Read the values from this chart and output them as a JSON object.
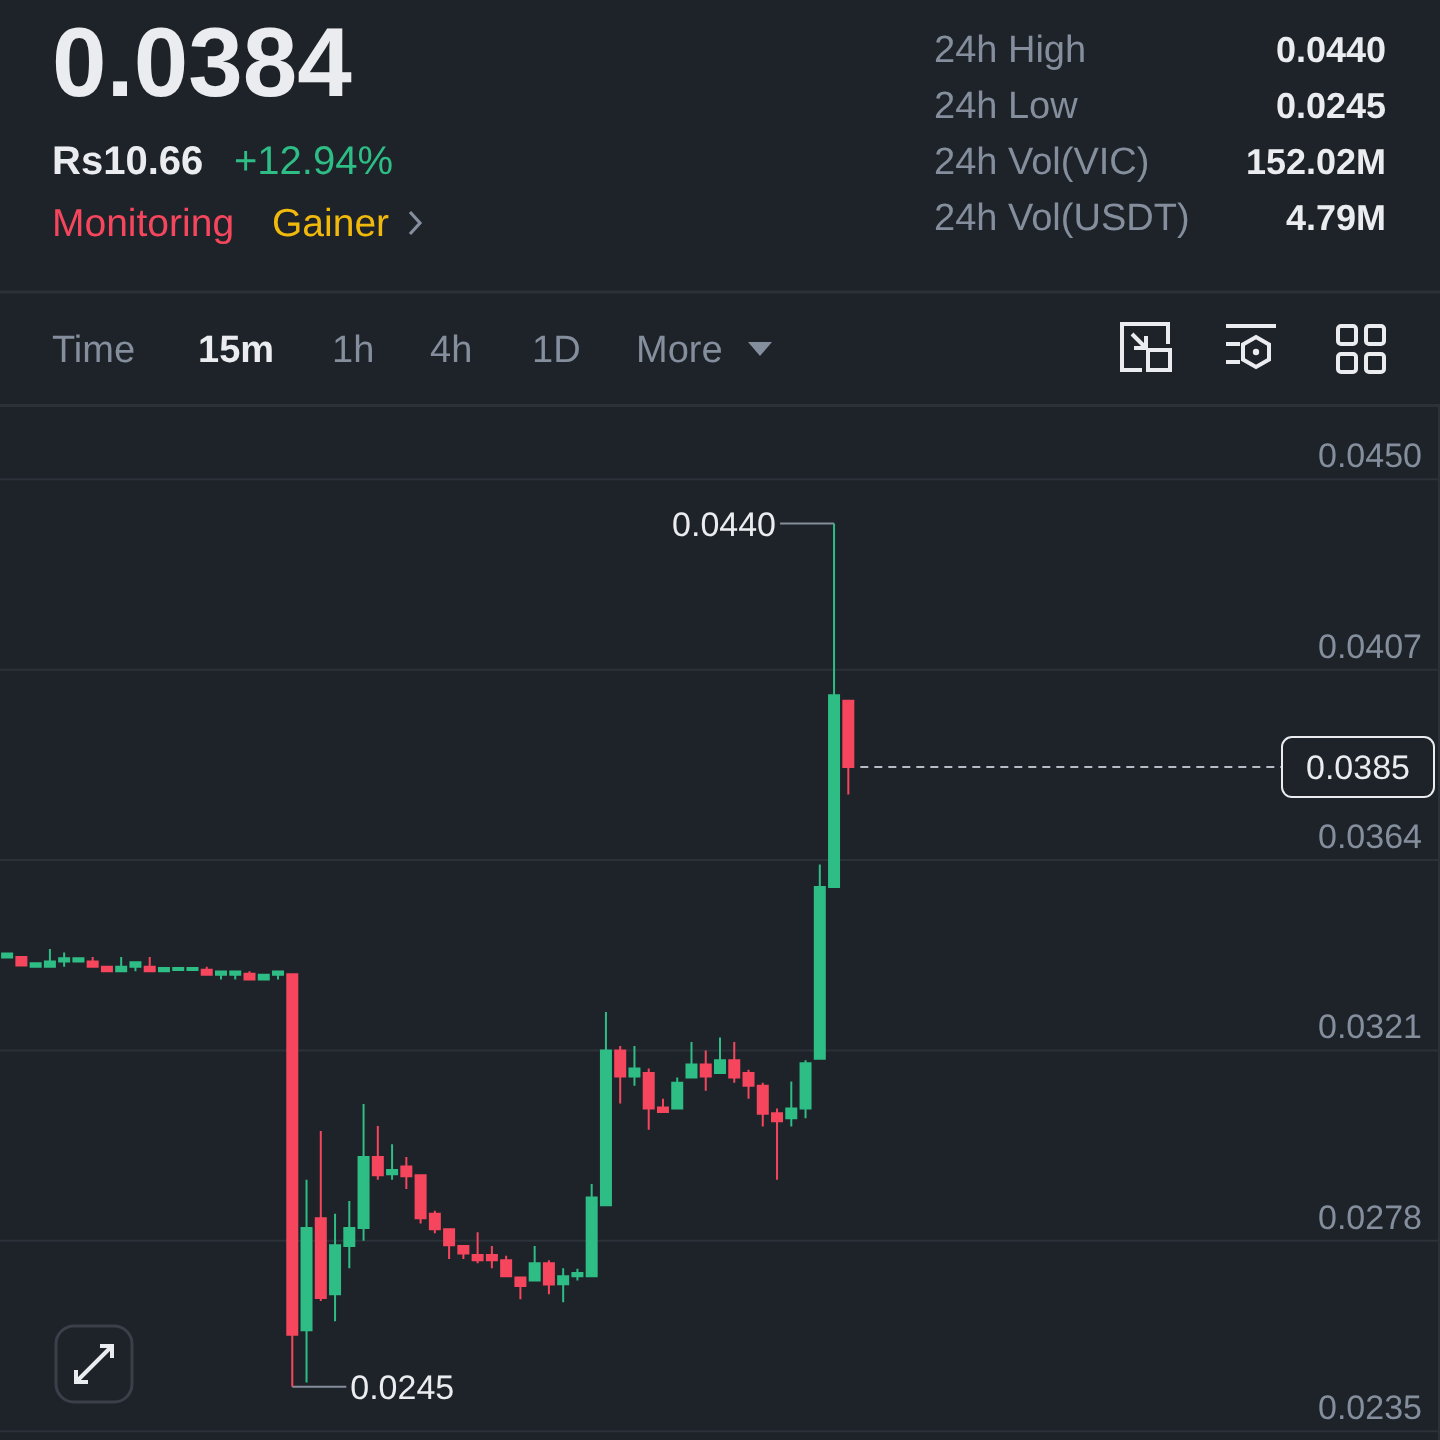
{
  "chart_data": {
    "type": "candlestick",
    "title": "0.0384",
    "annotations": [
      "Rs10.66",
      "+12.94%",
      "Monitoring",
      "Gainer",
      "24h High",
      "0.0440",
      "24h Low",
      "0.0245",
      "24h Vol(VIC)",
      "152.02M",
      "24h Vol(USDT)",
      "4.79M",
      "Time",
      "15m",
      "1h",
      "4h",
      "1D",
      "More",
      "0.0440",
      "0.0245"
    ],
    "categories": [
      null,
      null,
      null,
      null,
      null,
      null,
      null,
      null,
      null,
      null,
      null,
      null,
      null,
      null,
      null,
      null,
      null,
      null,
      null,
      null,
      null,
      null,
      null,
      null,
      null,
      null,
      null,
      null,
      null,
      null,
      null,
      null,
      null,
      null,
      null,
      null,
      null,
      null,
      null,
      null,
      null,
      null,
      null,
      null,
      null,
      null,
      null,
      null,
      null,
      null,
      null,
      null,
      null,
      null,
      null,
      null,
      null,
      null,
      null,
      null,
      null,
      null,
      null,
      null,
      null,
      null,
      null,
      null,
      null,
      null,
      null,
      null,
      null,
      null,
      null,
      null,
      null,
      null,
      null,
      null,
      null,
      null,
      null,
      null,
      null,
      null,
      null,
      null,
      null,
      null,
      null,
      null,
      null,
      null,
      null,
      null,
      null,
      null,
      null,
      null,
      null
    ],
    "ohlc": [
      [
        0.0342,
        0.03429,
        0.03418,
        0.03429
      ],
      [
        0.03421,
        0.03421,
        0.03402,
        0.03402
      ],
      [
        0.03399,
        0.03407,
        0.03399,
        0.03407
      ],
      [
        0.03399,
        0.03439,
        0.03399,
        0.03411
      ],
      [
        0.03411,
        0.03431,
        0.03399,
        0.03418
      ],
      [
        0.03411,
        0.03418,
        0.03411,
        0.03418
      ],
      [
        0.03411,
        0.03421,
        0.03399,
        0.03399
      ],
      [
        0.03399,
        0.03399,
        0.03389,
        0.03389
      ],
      [
        0.03389,
        0.03421,
        0.03389,
        0.03399
      ],
      [
        0.03399,
        0.03409,
        0.03389,
        0.03409
      ],
      [
        0.03399,
        0.03421,
        0.03389,
        0.03389
      ],
      [
        0.03389,
        0.03396,
        0.03389,
        0.03396
      ],
      [
        0.03392,
        0.03396,
        0.03392,
        0.03396
      ],
      [
        0.03392,
        0.03396,
        0.03392,
        0.03396
      ],
      [
        0.03392,
        0.03399,
        0.03381,
        0.03381
      ],
      [
        0.03381,
        0.03388,
        0.0337,
        0.03388
      ],
      [
        0.03381,
        0.03388,
        0.0337,
        0.03388
      ],
      [
        0.03383,
        0.03389,
        0.0337,
        0.0337
      ],
      [
        0.0337,
        0.03381,
        0.0337,
        0.03381
      ],
      [
        0.03381,
        0.03388,
        0.0337,
        0.03388
      ],
      [
        0.03382,
        0.03382,
        0.0245,
        0.02568
      ],
      [
        0.02578,
        0.02918,
        0.0246,
        0.02809
      ],
      [
        0.02831,
        0.03028,
        0.02644,
        0.02651
      ],
      [
        0.02659,
        0.02841,
        0.02598,
        0.0277
      ],
      [
        0.02768,
        0.0287,
        0.02718,
        0.02809
      ],
      [
        0.02809,
        0.03089,
        0.0278,
        0.02969
      ],
      [
        0.02969,
        0.03039,
        0.02918,
        0.02928
      ],
      [
        0.0293,
        0.02998,
        0.02918,
        0.0294
      ],
      [
        0.02948,
        0.02969,
        0.02897,
        0.02926
      ],
      [
        0.02928,
        0.02928,
        0.02819,
        0.02831
      ],
      [
        0.02841,
        0.02848,
        0.02797,
        0.02806
      ],
      [
        0.02806,
        0.02806,
        0.02739,
        0.0277
      ],
      [
        0.02768,
        0.02768,
        0.02739,
        0.02751
      ],
      [
        0.02748,
        0.02799,
        0.02729,
        0.02736
      ],
      [
        0.02748,
        0.02768,
        0.02718,
        0.02736
      ],
      [
        0.02736,
        0.02746,
        0.027,
        0.027
      ],
      [
        0.02697,
        0.02697,
        0.02648,
        0.02678
      ],
      [
        0.0269,
        0.02768,
        0.0269,
        0.02729
      ],
      [
        0.02729,
        0.02736,
        0.02659,
        0.02681
      ],
      [
        0.02682,
        0.02718,
        0.02641,
        0.027
      ],
      [
        0.027,
        0.02717,
        0.0269,
        0.02707
      ],
      [
        0.027,
        0.02908,
        0.027,
        0.02878
      ],
      [
        0.0286,
        0.03297,
        0.0286,
        0.0321
      ],
      [
        0.0321,
        0.0322,
        0.0309,
        0.03151
      ],
      [
        0.03151,
        0.0322,
        0.0313,
        0.03169
      ],
      [
        0.03159,
        0.03169,
        0.03031,
        0.03079
      ],
      [
        0.03081,
        0.03101,
        0.03071,
        0.03071
      ],
      [
        0.03079,
        0.03149,
        0.03079,
        0.03137
      ],
      [
        0.03149,
        0.03229,
        0.03149,
        0.03178
      ],
      [
        0.03178,
        0.0321,
        0.03119,
        0.03151
      ],
      [
        0.03159,
        0.03239,
        0.03159,
        0.03188
      ],
      [
        0.03188,
        0.03229,
        0.03137,
        0.03149
      ],
      [
        0.03159,
        0.03166,
        0.03101,
        0.0313
      ],
      [
        0.0313,
        0.03137,
        0.03038,
        0.03067
      ],
      [
        0.03068,
        0.03079,
        0.02918,
        0.0305
      ],
      [
        0.03057,
        0.0314,
        0.03038,
        0.03079
      ],
      [
        0.03079,
        0.03188,
        0.03057,
        0.03181
      ],
      [
        0.03191,
        0.0363,
        0.03191,
        0.03579
      ],
      [
        0.03579,
        0.044,
        0.03579,
        0.04012
      ],
      [
        0.04,
        0.04,
        0.03788,
        0.0385
      ],
      null,
      null,
      null,
      null,
      null,
      null,
      null,
      null,
      null,
      null,
      null,
      null,
      null,
      null,
      null,
      null,
      null,
      null,
      null,
      null,
      null,
      null,
      null,
      null,
      null,
      null,
      null,
      null,
      null,
      null,
      null,
      null,
      null,
      null,
      null,
      null,
      null,
      null,
      null,
      null,
      null
    ],
    "colors": [
      "#2ebd85",
      "#f6465d",
      "#2ebd85",
      "#2ebd85",
      "#2ebd85",
      "#2ebd85",
      "#f6465d",
      "#f6465d",
      "#2ebd85",
      "#2ebd85",
      "#f6465d",
      "#2ebd85",
      "#2ebd85",
      "#2ebd85",
      "#f6465d",
      "#2ebd85",
      "#2ebd85",
      "#f6465d",
      "#2ebd85",
      "#2ebd85",
      "#f6465d",
      "#2ebd85",
      "#f6465d",
      "#2ebd85",
      "#2ebd85",
      "#2ebd85",
      "#f6465d",
      "#2ebd85",
      "#f6465d",
      "#f6465d",
      "#f6465d",
      "#f6465d",
      "#f6465d",
      "#f6465d",
      "#f6465d",
      "#f6465d",
      "#f6465d",
      "#2ebd85",
      "#f6465d",
      "#2ebd85",
      "#2ebd85",
      "#2ebd85",
      "#2ebd85",
      "#f6465d",
      "#2ebd85",
      "#f6465d",
      "#f6465d",
      "#2ebd85",
      "#2ebd85",
      "#f6465d",
      "#2ebd85",
      "#f6465d",
      "#f6465d",
      "#f6465d",
      "#f6465d",
      "#2ebd85",
      "#2ebd85",
      "#2ebd85",
      "#2ebd85",
      "#f6465d",
      null,
      null,
      null,
      null,
      null,
      null,
      null,
      null,
      null,
      null,
      null,
      null,
      null,
      null,
      null,
      null,
      null,
      null,
      null,
      null,
      null,
      null,
      null,
      null,
      null,
      null,
      null,
      null,
      null,
      null,
      null,
      null,
      null,
      null,
      null,
      null,
      null,
      null,
      null,
      null,
      null
    ],
    "ylim": [
      0.0233,
      0.0467
    ],
    "yticks": [
      {
        "value": 0.045,
        "label": "0.0450"
      },
      0.0407,
      0.0364,
      0.0321,
      0.0278,
      0.0235
    ],
    "grid": "y",
    "tick_labels": "y",
    "ref_lines": [
      {
        "axis": "y",
        "value": 0.0385,
        "label": "0.0385",
        "color": "#b7bdc6",
        "line_style": "dashed"
      }
    ]
  }
}
